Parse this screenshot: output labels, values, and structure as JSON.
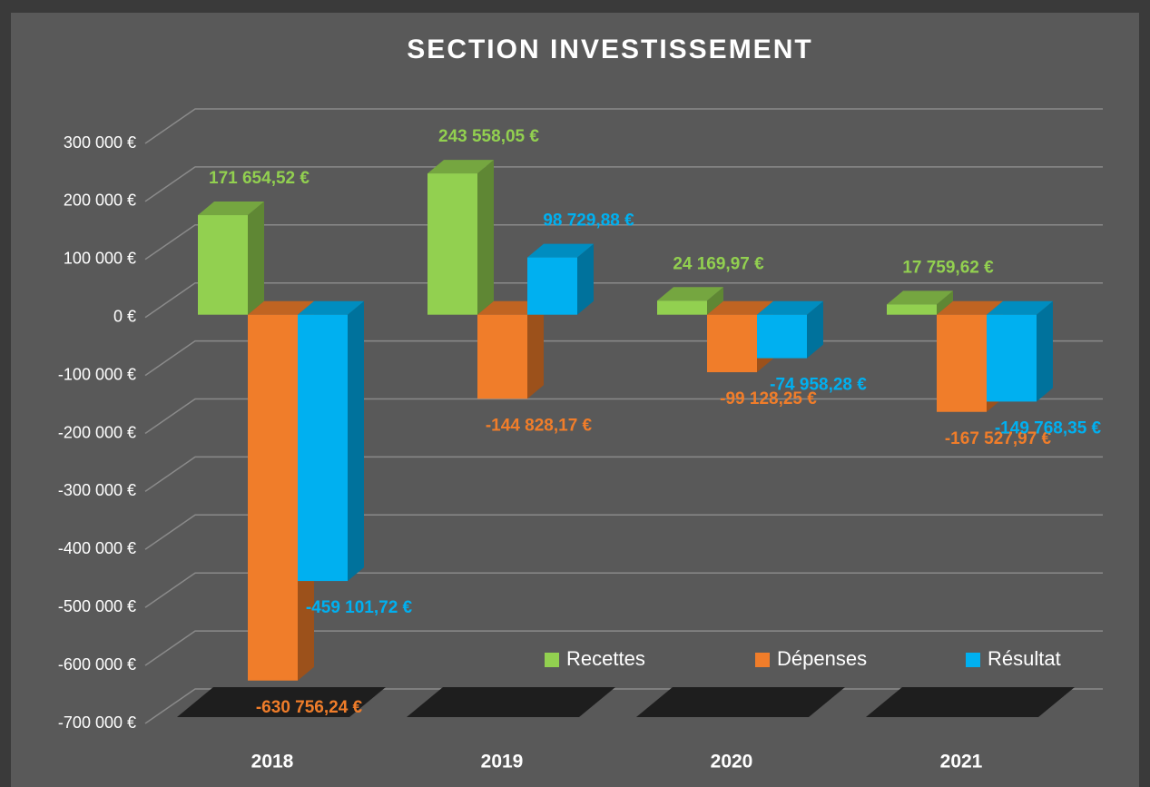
{
  "chart_data": {
    "type": "bar3d",
    "title": "SECTION INVESTISSEMENT",
    "categories": [
      "2018",
      "2019",
      "2020",
      "2021"
    ],
    "series": [
      {
        "name": "Recettes",
        "color": "#92d050",
        "values": [
          171654.52,
          243558.05,
          24169.97,
          17759.62
        ],
        "value_labels": [
          "171 654,52 €",
          "243 558,05 €",
          "24 169,97 €",
          "17 759,62 €"
        ]
      },
      {
        "name": "Dépenses",
        "color": "#f07d2a",
        "values": [
          -630756.24,
          -144828.17,
          -99128.25,
          -167527.97
        ],
        "value_labels": [
          "-630 756,24 €",
          "-144 828,17 €",
          "-99 128,25 €",
          "-167 527,97 €"
        ]
      },
      {
        "name": "Résultat",
        "color": "#00b0f0",
        "values": [
          -459101.72,
          98729.88,
          -74958.28,
          -149768.35
        ],
        "value_labels": [
          "-459 101,72 €",
          "98 729,88 €",
          "-74 958,28 €",
          "-149 768,35 €"
        ]
      }
    ],
    "ylim": [
      -700000,
      300000
    ],
    "yticks": [
      {
        "value": 300000,
        "label": "300 000 €"
      },
      {
        "value": 200000,
        "label": "200 000 €"
      },
      {
        "value": 100000,
        "label": "100 000 €"
      },
      {
        "value": 0,
        "label": "0 €"
      },
      {
        "value": -100000,
        "label": "-100 000 €"
      },
      {
        "value": -200000,
        "label": "-200 000 €"
      },
      {
        "value": -300000,
        "label": "-300 000 €"
      },
      {
        "value": -400000,
        "label": "-400 000 €"
      },
      {
        "value": -500000,
        "label": "-500 000 €"
      },
      {
        "value": -600000,
        "label": "-600 000 €"
      },
      {
        "value": -700000,
        "label": "-700 000 €"
      }
    ],
    "grid": true,
    "legend": "bottom-right"
  }
}
